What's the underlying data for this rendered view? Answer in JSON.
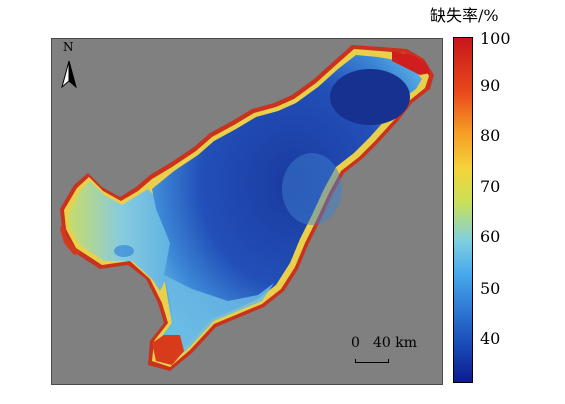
{
  "legend": {
    "title": "缺失率/%",
    "ticks": [
      "100",
      "90",
      "80",
      "70",
      "60",
      "50",
      "40"
    ]
  },
  "map": {
    "north_label": "N",
    "scale_zero": "0",
    "scale_distance": "40 km",
    "background_color": "#808080",
    "colors": {
      "low": "#12288f",
      "mid": "#4aa3e0",
      "high": "#f2d33c",
      "max": "#c8161b"
    }
  }
}
